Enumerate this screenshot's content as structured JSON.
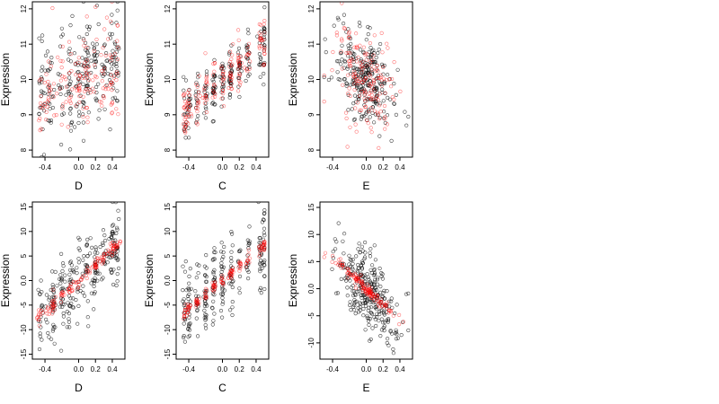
{
  "chart_data": [
    {
      "type": "scatter",
      "panel": "top-left",
      "xlabel": "D",
      "ylabel": "Expression",
      "xlim": [
        -0.55,
        0.55
      ],
      "ylim": [
        7.8,
        12.2
      ],
      "xticks": [
        -0.4,
        0.0,
        0.2,
        0.4
      ],
      "xtick_labels": [
        "-0.4",
        "0.0",
        "0.2",
        "0.4"
      ],
      "yticks": [
        8,
        9,
        10,
        11,
        12
      ],
      "ytick_labels": [
        "8",
        "9",
        "10",
        "11",
        "12"
      ],
      "trend": {
        "slope": 1.0,
        "intercept": 10.0
      },
      "spread": {
        "black": 0.8,
        "red": 0.75
      },
      "x_dist": {
        "type": "mixed",
        "clusters": [
          -0.45,
          -0.35,
          -0.2,
          -0.1,
          0.0,
          0.05,
          0.1,
          0.2,
          0.3,
          0.4,
          0.45
        ]
      },
      "series": [
        {
          "color": "#000000",
          "count": 240
        },
        {
          "color": "#ff0000",
          "count": 160
        }
      ]
    },
    {
      "type": "scatter",
      "panel": "top-middle",
      "xlabel": "C",
      "ylabel": "Expression",
      "xlim": [
        -0.55,
        0.55
      ],
      "ylim": [
        7.8,
        12.2
      ],
      "xticks": [
        -0.4,
        0.0,
        0.2,
        0.4
      ],
      "xtick_labels": [
        "-0.4",
        "0.0",
        "0.2",
        "0.4"
      ],
      "yticks": [
        8,
        9,
        10,
        11,
        12
      ],
      "ytick_labels": [
        "8",
        "9",
        "10",
        "11",
        "12"
      ],
      "trend": {
        "slope": 2.0,
        "intercept": 10.0
      },
      "spread": {
        "black": 0.45,
        "red": 0.35
      },
      "x_dist": {
        "type": "clusters",
        "clusters": [
          -0.45,
          -0.4,
          -0.3,
          -0.2,
          -0.1,
          0.0,
          0.1,
          0.2,
          0.3,
          0.45,
          0.5
        ]
      },
      "series": [
        {
          "color": "#000000",
          "count": 200
        },
        {
          "color": "#ff0000",
          "count": 170
        }
      ]
    },
    {
      "type": "scatter",
      "panel": "top-right",
      "xlabel": "E",
      "ylabel": "Expression",
      "xlim": [
        -0.55,
        0.55
      ],
      "ylim": [
        7.8,
        12.2
      ],
      "xticks": [
        -0.4,
        0.0,
        0.2,
        0.4
      ],
      "xtick_labels": [
        "-0.4",
        "0.0",
        "0.2",
        "0.4"
      ],
      "yticks": [
        8,
        9,
        10,
        11,
        12
      ],
      "ytick_labels": [
        "8",
        "9",
        "10",
        "11",
        "12"
      ],
      "trend": {
        "slope": -1.5,
        "intercept": 10.0
      },
      "spread": {
        "black": 0.65,
        "red": 0.7
      },
      "x_dist": {
        "type": "center",
        "sd": 0.18
      },
      "series": [
        {
          "color": "#000000",
          "count": 260
        },
        {
          "color": "#ff0000",
          "count": 160
        }
      ]
    },
    {
      "type": "scatter",
      "panel": "bottom-left",
      "xlabel": "D",
      "ylabel": "Expression",
      "xlim": [
        -0.55,
        0.55
      ],
      "ylim": [
        -16,
        16
      ],
      "xticks": [
        -0.4,
        0.0,
        0.2,
        0.4
      ],
      "xtick_labels": [
        "-0.4",
        "0.0",
        "0.2",
        "0.4"
      ],
      "yticks": [
        -15,
        -10,
        -5,
        0,
        5,
        10,
        15
      ],
      "ytick_labels": [
        "-15",
        "-10",
        "-5",
        "0.0",
        "5",
        "10",
        "15"
      ],
      "trend": {
        "slope": 16.0,
        "intercept": 0.0
      },
      "spread": {
        "black": 4.0,
        "red": 0.7
      },
      "x_dist": {
        "type": "mixed",
        "clusters": [
          -0.45,
          -0.3,
          -0.2,
          -0.1,
          0.0,
          0.1,
          0.2,
          0.3,
          0.4,
          0.45
        ]
      },
      "series": [
        {
          "color": "#000000",
          "count": 260
        },
        {
          "color": "#ff0000",
          "count": 140
        }
      ]
    },
    {
      "type": "scatter",
      "panel": "bottom-middle",
      "xlabel": "C",
      "ylabel": "Expression",
      "xlim": [
        -0.55,
        0.55
      ],
      "ylim": [
        -16,
        16
      ],
      "xticks": [
        -0.4,
        0.0,
        0.2,
        0.4
      ],
      "xtick_labels": [
        "-0.4",
        "0.0",
        "0.2",
        "0.4"
      ],
      "yticks": [
        -15,
        -10,
        -5,
        0,
        5,
        10,
        15
      ],
      "ytick_labels": [
        "-15",
        "-10",
        "-5",
        "0.0",
        "5",
        "10",
        "15"
      ],
      "trend": {
        "slope": 14.5,
        "intercept": 0.0
      },
      "spread": {
        "black": 4.0,
        "red": 0.6
      },
      "x_dist": {
        "type": "clusters",
        "clusters": [
          -0.45,
          -0.4,
          -0.3,
          -0.2,
          -0.1,
          0.0,
          0.1,
          0.2,
          0.3,
          0.45,
          0.5
        ]
      },
      "series": [
        {
          "color": "#000000",
          "count": 240
        },
        {
          "color": "#ff0000",
          "count": 140
        }
      ]
    },
    {
      "type": "scatter",
      "panel": "bottom-right",
      "xlabel": "E",
      "ylabel": "Expression",
      "xlim": [
        -0.55,
        0.55
      ],
      "ylim": [
        -13,
        16
      ],
      "xticks": [
        -0.4,
        0.0,
        0.2,
        0.4
      ],
      "xtick_labels": [
        "-0.4",
        "0.0",
        "0.2",
        "0.4"
      ],
      "yticks": [
        -10,
        -5,
        0,
        5,
        10,
        15
      ],
      "ytick_labels": [
        "-10",
        "-5",
        "0.0",
        "5",
        "10",
        "15"
      ],
      "trend": {
        "slope": -14.5,
        "intercept": 0.0
      },
      "spread": {
        "black": 3.5,
        "red": 0.6
      },
      "x_dist": {
        "type": "center",
        "sd": 0.18
      },
      "series": [
        {
          "color": "#000000",
          "count": 280
        },
        {
          "color": "#ff0000",
          "count": 140
        }
      ]
    }
  ]
}
